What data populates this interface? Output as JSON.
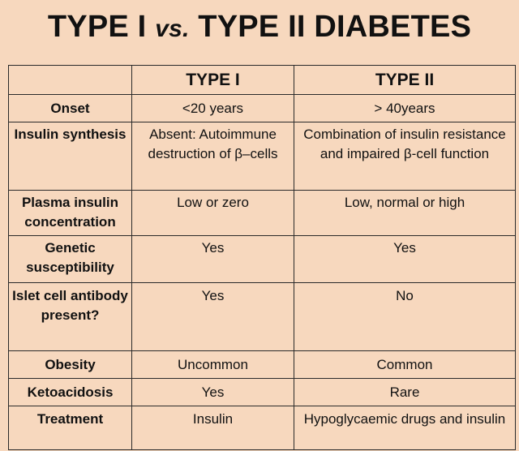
{
  "title": {
    "main": "TYPE I",
    "vs": "vs.",
    "rest": "TYPE II DIABETES"
  },
  "columns": [
    "",
    "TYPE I",
    "TYPE II"
  ],
  "rows": [
    {
      "label": "Onset",
      "type1": "<20 years",
      "type2": "> 40years"
    },
    {
      "label": "Insulin synthesis",
      "type1": "Absent: Autoimmune destruction of β–cells",
      "type2": "Combination of insulin resistance and impaired β-cell function"
    },
    {
      "label": "Plasma insulin concentration",
      "type1": "Low or zero",
      "type2": "Low, normal or high"
    },
    {
      "label": "Genetic susceptibility",
      "type1": "Yes",
      "type2": "Yes"
    },
    {
      "label": "Islet cell antibody present?",
      "type1": "Yes",
      "type2": "No"
    },
    {
      "label": "Obesity",
      "type1": "Uncommon",
      "type2": "Common"
    },
    {
      "label": "Ketoacidosis",
      "type1": "Yes",
      "type2": "Rare"
    },
    {
      "label": "Treatment",
      "type1": "Insulin",
      "type2": "Hypoglycaemic drugs and insulin"
    }
  ]
}
